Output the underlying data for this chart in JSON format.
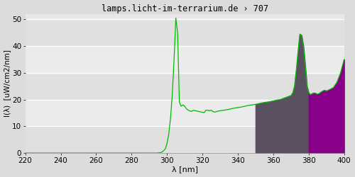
{
  "title": "lamps.licht-im-terrarium.de › 707",
  "xlabel": "λ [nm]",
  "ylabel": "I(λ)  [uW/cm2/nm]",
  "xlim": [
    220,
    400
  ],
  "ylim": [
    0,
    52
  ],
  "yticks": [
    0,
    10,
    20,
    30,
    40,
    50
  ],
  "xticks": [
    220,
    240,
    260,
    280,
    300,
    320,
    340,
    360,
    380,
    400
  ],
  "bg_color": "#dcdcdc",
  "plot_bg_light": "#e8e8e8",
  "plot_bg_dark": "#d8d8d8",
  "line_color": "#00bb00",
  "gray_fill_color": "#5a5060",
  "purple_fill_color": "#880088",
  "gray_split": 380,
  "vit_d_start": 350,
  "vit_d_end": 400,
  "spectrum_x": [
    220,
    222,
    224,
    226,
    228,
    230,
    232,
    234,
    236,
    238,
    240,
    242,
    244,
    246,
    248,
    250,
    252,
    254,
    256,
    258,
    260,
    262,
    264,
    266,
    268,
    270,
    272,
    274,
    276,
    278,
    280,
    282,
    284,
    286,
    288,
    290,
    292,
    294,
    296,
    297,
    298,
    299,
    300,
    301,
    302,
    303,
    304,
    305,
    306,
    307,
    308,
    309,
    310,
    311,
    312,
    313,
    314,
    315,
    316,
    317,
    318,
    319,
    320,
    321,
    322,
    323,
    324,
    325,
    326,
    327,
    328,
    329,
    330,
    332,
    334,
    336,
    338,
    340,
    342,
    344,
    346,
    348,
    350,
    352,
    354,
    356,
    358,
    360,
    362,
    364,
    366,
    368,
    370,
    371,
    372,
    373,
    374,
    375,
    376,
    377,
    378,
    379,
    380,
    381,
    382,
    383,
    384,
    385,
    386,
    387,
    388,
    389,
    390,
    392,
    394,
    396,
    398,
    400
  ],
  "spectrum_y": [
    0,
    0,
    0,
    0,
    0,
    0,
    0,
    0,
    0,
    0,
    0,
    0,
    0,
    0,
    0,
    0,
    0,
    0,
    0,
    0,
    0,
    0,
    0,
    0,
    0,
    0,
    0,
    0,
    0,
    0,
    0,
    0,
    0,
    0,
    0,
    0,
    0,
    0,
    0.1,
    0.3,
    0.8,
    1.5,
    3.5,
    7.0,
    13.0,
    22.0,
    35.0,
    50.5,
    45.0,
    19.0,
    17.5,
    18.0,
    17.5,
    16.5,
    16.0,
    15.7,
    15.6,
    16.0,
    15.8,
    15.7,
    15.5,
    15.4,
    15.2,
    15.1,
    16.0,
    16.0,
    15.8,
    16.0,
    15.5,
    15.3,
    15.5,
    15.7,
    15.8,
    16.0,
    16.2,
    16.5,
    16.8,
    17.0,
    17.2,
    17.5,
    17.8,
    18.0,
    18.2,
    18.5,
    18.8,
    19.0,
    19.2,
    19.5,
    19.8,
    20.0,
    20.5,
    21.0,
    21.5,
    22.5,
    25.0,
    31.0,
    38.0,
    44.5,
    44.0,
    40.0,
    33.0,
    25.0,
    22.5,
    21.8,
    22.2,
    22.5,
    22.3,
    22.0,
    22.3,
    22.8,
    23.2,
    23.5,
    23.2,
    23.8,
    24.5,
    26.5,
    30.0,
    35.0
  ]
}
